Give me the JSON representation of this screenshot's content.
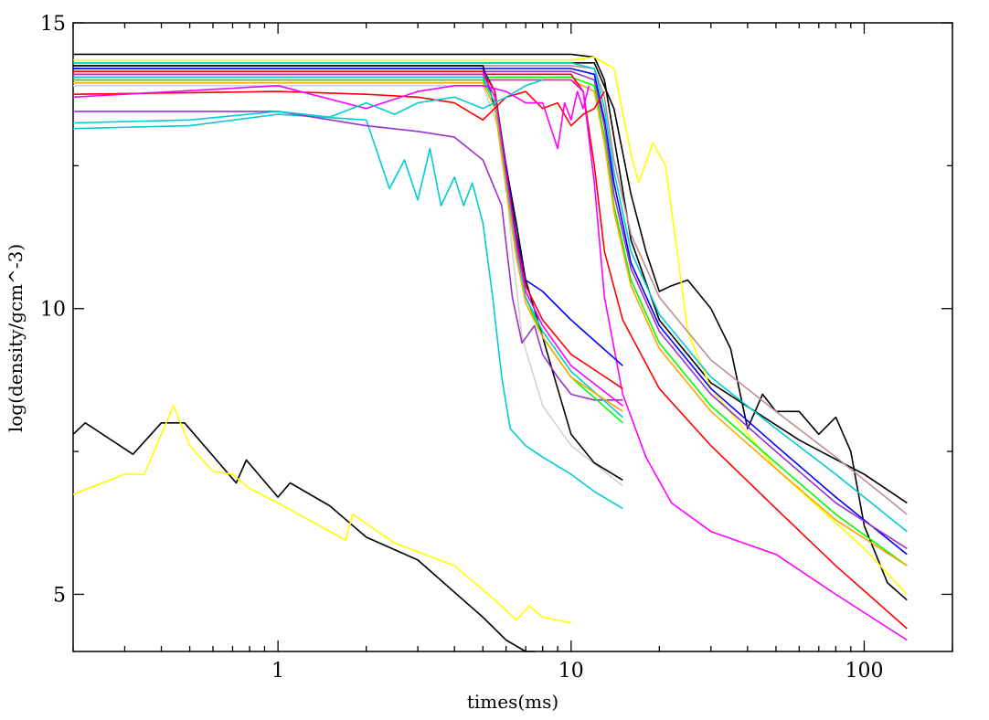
{
  "chart_data": {
    "type": "line",
    "title": "",
    "xlabel": "times(ms)",
    "ylabel": "log(density/gcm^-3)",
    "xscale": "log",
    "xlim": [
      0.2,
      200
    ],
    "ylim": [
      4,
      15
    ],
    "xticks": [
      1,
      10,
      100
    ],
    "xtick_labels": [
      "1",
      "10",
      "100"
    ],
    "yticks": [
      5,
      10,
      15
    ],
    "ytick_labels": [
      "5",
      "10",
      "15"
    ],
    "grid": false,
    "legend": "none",
    "series": [
      {
        "color": "#000000",
        "x": [
          0.2,
          0.22,
          0.32,
          0.4,
          0.48,
          0.72,
          0.78,
          1.0,
          1.1,
          1.5,
          2.0,
          3.0,
          5.0,
          6.0,
          7.0,
          7.5
        ],
        "y": [
          7.8,
          8.0,
          7.45,
          8.0,
          8.0,
          6.95,
          7.35,
          6.7,
          6.95,
          6.55,
          6.0,
          5.6,
          4.6,
          4.2,
          4.0,
          4.0
        ]
      },
      {
        "color": "#ffff00",
        "x": [
          0.2,
          0.3,
          0.35,
          0.44,
          0.5,
          0.6,
          0.7,
          0.8,
          1.0,
          1.7,
          1.8,
          2.5,
          4.0,
          5.5,
          6.5,
          7.2,
          8.0,
          10.0
        ],
        "y": [
          6.75,
          7.1,
          7.1,
          8.3,
          7.6,
          7.15,
          7.1,
          6.85,
          6.6,
          5.95,
          6.4,
          5.9,
          5.5,
          4.9,
          4.55,
          4.8,
          4.6,
          4.5
        ]
      },
      {
        "color": "#000000",
        "x": [
          0.2,
          1,
          5,
          10,
          12,
          13,
          14,
          16,
          20,
          30,
          60,
          100,
          140
        ],
        "y": [
          14.45,
          14.45,
          14.45,
          14.45,
          14.4,
          14.0,
          13.0,
          11.2,
          9.8,
          8.7,
          7.7,
          7.1,
          6.6
        ]
      },
      {
        "color": "#000000",
        "x": [
          0.2,
          1,
          5,
          12,
          14,
          16,
          18,
          20,
          22,
          25,
          30,
          35,
          40,
          45,
          50,
          60,
          70,
          80,
          90,
          100,
          120,
          140
        ],
        "y": [
          14.3,
          14.3,
          14.3,
          14.3,
          13.5,
          12.0,
          11.0,
          10.3,
          10.4,
          10.5,
          10.0,
          9.3,
          7.9,
          8.5,
          8.2,
          8.2,
          7.8,
          8.1,
          7.5,
          6.2,
          5.2,
          4.9
        ]
      },
      {
        "color": "#ffff00",
        "x": [
          0.2,
          1,
          5,
          10,
          12,
          14,
          16,
          17,
          19,
          21,
          23,
          25,
          30,
          50,
          100,
          140
        ],
        "y": [
          14.35,
          14.35,
          14.35,
          14.35,
          14.4,
          14.2,
          12.7,
          12.2,
          12.9,
          12.5,
          11.0,
          9.6,
          8.6,
          7.2,
          5.8,
          5.0
        ]
      },
      {
        "color": "#bc8f8f",
        "x": [
          0.2,
          1,
          5,
          10,
          12,
          13,
          14,
          16,
          20,
          30,
          50,
          80,
          140
        ],
        "y": [
          14.25,
          14.25,
          14.25,
          14.25,
          14.2,
          13.7,
          12.6,
          11.3,
          10.2,
          9.1,
          8.2,
          7.4,
          6.4
        ]
      },
      {
        "color": "#00ced1",
        "x": [
          0.2,
          1,
          5,
          10,
          12,
          13,
          14,
          16,
          20,
          30,
          50,
          80,
          140
        ],
        "y": [
          14.3,
          14.3,
          14.3,
          14.3,
          14.2,
          13.5,
          12.4,
          11.0,
          9.9,
          8.8,
          7.9,
          7.1,
          6.1
        ]
      },
      {
        "color": "#0000ff",
        "x": [
          0.2,
          1,
          5,
          10,
          12,
          13,
          14,
          16,
          20,
          30,
          50,
          80,
          140
        ],
        "y": [
          14.2,
          14.2,
          14.2,
          14.2,
          14.1,
          13.3,
          12.2,
          10.8,
          9.7,
          8.6,
          7.6,
          6.7,
          5.7
        ]
      },
      {
        "color": "#9932cc",
        "x": [
          0.2,
          1,
          5,
          10,
          12,
          13,
          14,
          16,
          20,
          30,
          50,
          80,
          140
        ],
        "y": [
          14.15,
          14.15,
          14.15,
          14.15,
          14.0,
          13.2,
          12.0,
          10.7,
          9.6,
          8.5,
          7.5,
          6.6,
          5.8
        ]
      },
      {
        "color": "#00ff00",
        "x": [
          0.2,
          1,
          5,
          10,
          12,
          13,
          14,
          16,
          20,
          30,
          50,
          80,
          140
        ],
        "y": [
          14.05,
          14.05,
          14.05,
          14.05,
          13.9,
          13.0,
          11.8,
          10.5,
          9.4,
          8.3,
          7.3,
          6.4,
          5.5
        ]
      },
      {
        "color": "#ffa500",
        "x": [
          0.2,
          1,
          5,
          10,
          12,
          13,
          14,
          16,
          20,
          30,
          50,
          80,
          140
        ],
        "y": [
          14.0,
          14.0,
          14.0,
          14.0,
          13.8,
          12.9,
          11.7,
          10.4,
          9.3,
          8.2,
          7.2,
          6.3,
          5.5
        ]
      },
      {
        "color": "#ff0000",
        "x": [
          0.2,
          1,
          5,
          10,
          11,
          12,
          13,
          15,
          20,
          30,
          50,
          80,
          140
        ],
        "y": [
          14.1,
          14.1,
          14.1,
          14.1,
          13.8,
          12.5,
          11.0,
          9.8,
          8.6,
          7.6,
          6.5,
          5.5,
          4.4
        ]
      },
      {
        "color": "#ff00ff",
        "x": [
          0.2,
          1,
          5,
          10,
          11,
          12,
          13,
          15,
          18,
          22,
          30,
          50,
          80,
          140
        ],
        "y": [
          14.0,
          14.0,
          14.0,
          14.0,
          13.8,
          12.2,
          10.2,
          8.5,
          7.4,
          6.6,
          6.1,
          5.7,
          5.0,
          4.2
        ]
      },
      {
        "color": "#00ced1",
        "x": [
          0.2,
          0.5,
          1,
          2,
          2.4,
          2.7,
          3.0,
          3.3,
          3.6,
          4.0,
          4.3,
          4.6,
          5.0,
          5.4,
          5.8,
          6.2,
          7.0,
          8.0,
          10.0,
          12.0,
          15.0
        ],
        "y": [
          13.15,
          13.2,
          13.4,
          13.3,
          12.1,
          12.6,
          11.9,
          12.8,
          11.8,
          12.3,
          11.8,
          12.2,
          11.5,
          10.2,
          8.8,
          7.9,
          7.6,
          7.4,
          7.1,
          6.8,
          6.5
        ]
      },
      {
        "color": "#d3d3d3",
        "x": [
          0.2,
          1,
          3,
          5,
          5.8,
          6.3,
          6.8,
          8,
          10,
          15
        ],
        "y": [
          13.9,
          13.9,
          13.9,
          13.9,
          13.0,
          11.0,
          9.5,
          8.3,
          7.6,
          6.9
        ]
      },
      {
        "color": "#000000",
        "x": [
          0.2,
          1,
          3,
          5,
          5.5,
          6.0,
          6.5,
          7,
          8,
          9,
          10,
          12,
          15
        ],
        "y": [
          14.25,
          14.25,
          14.25,
          14.25,
          13.5,
          12.5,
          11.5,
          10.5,
          9.5,
          8.6,
          7.8,
          7.3,
          7.0
        ]
      },
      {
        "color": "#9932cc",
        "x": [
          0.2,
          1,
          2,
          3,
          4,
          5,
          5.8,
          6.3,
          6.8,
          7.5,
          8,
          9,
          10,
          12,
          15
        ],
        "y": [
          13.45,
          13.45,
          13.2,
          13.1,
          13.0,
          12.6,
          11.8,
          10.2,
          9.4,
          9.7,
          9.2,
          8.8,
          8.5,
          8.4,
          8.4
        ]
      },
      {
        "color": "#0000ff",
        "x": [
          0.2,
          1,
          3,
          5,
          5.5,
          6.0,
          6.5,
          7,
          8,
          10,
          15
        ],
        "y": [
          14.2,
          14.2,
          14.2,
          14.2,
          13.8,
          12.5,
          11.3,
          10.5,
          10.3,
          9.8,
          9.0
        ]
      },
      {
        "color": "#ff0000",
        "x": [
          0.2,
          1,
          3,
          5,
          5.5,
          6,
          6.5,
          7,
          8,
          10,
          15
        ],
        "y": [
          14.15,
          14.15,
          14.15,
          14.15,
          13.8,
          12.4,
          11.2,
          10.4,
          9.8,
          9.2,
          8.6
        ]
      },
      {
        "color": "#00ff00",
        "x": [
          0.2,
          1,
          3,
          5,
          5.5,
          6,
          6.5,
          7,
          8,
          10,
          15
        ],
        "y": [
          14.0,
          14.0,
          14.0,
          14.0,
          13.6,
          12.2,
          11.0,
          10.2,
          9.5,
          8.8,
          8.0
        ]
      },
      {
        "color": "#ff00ff",
        "x": [
          0.2,
          1,
          3,
          5,
          5.5,
          6,
          6.5,
          7,
          8,
          10,
          15
        ],
        "y": [
          14.1,
          14.1,
          14.1,
          14.1,
          13.7,
          12.3,
          11.1,
          10.3,
          9.7,
          9.0,
          8.3
        ]
      },
      {
        "color": "#00ced1",
        "x": [
          0.2,
          1,
          3,
          5,
          5.5,
          6,
          6.5,
          7,
          8,
          10,
          15
        ],
        "y": [
          14.05,
          14.05,
          14.05,
          14.05,
          13.6,
          12.2,
          11.0,
          10.2,
          9.6,
          8.9,
          8.1
        ]
      },
      {
        "color": "#ffa500",
        "x": [
          0.2,
          1,
          3,
          5,
          5.5,
          6,
          6.5,
          7,
          8,
          10,
          15
        ],
        "y": [
          13.95,
          13.95,
          13.95,
          13.95,
          13.5,
          12.1,
          10.9,
          10.1,
          9.5,
          8.8,
          8.2
        ]
      },
      {
        "color": "#ff0000",
        "x": [
          0.2,
          1,
          2,
          3,
          4,
          5,
          6,
          7,
          8,
          9,
          10,
          11,
          12,
          13
        ],
        "y": [
          13.75,
          13.8,
          13.75,
          13.7,
          13.6,
          13.3,
          13.7,
          13.8,
          13.5,
          13.6,
          13.2,
          13.4,
          13.5,
          13.8
        ]
      },
      {
        "color": "#ff00ff",
        "x": [
          0.2,
          1,
          2,
          3,
          4,
          5,
          6,
          7,
          8,
          9,
          9.5,
          10,
          10.5,
          11,
          11.5
        ],
        "y": [
          13.7,
          13.9,
          13.5,
          13.8,
          13.9,
          13.9,
          13.8,
          13.6,
          13.6,
          12.8,
          13.6,
          13.3,
          13.8,
          13.5,
          13.9
        ]
      },
      {
        "color": "#00ced1",
        "x": [
          0.2,
          0.5,
          1,
          1.5,
          2,
          2.5,
          3,
          4,
          5,
          6,
          7,
          8
        ],
        "y": [
          13.25,
          13.3,
          13.45,
          13.35,
          13.6,
          13.4,
          13.6,
          13.7,
          13.5,
          13.7,
          13.9,
          14.0
        ]
      }
    ]
  }
}
